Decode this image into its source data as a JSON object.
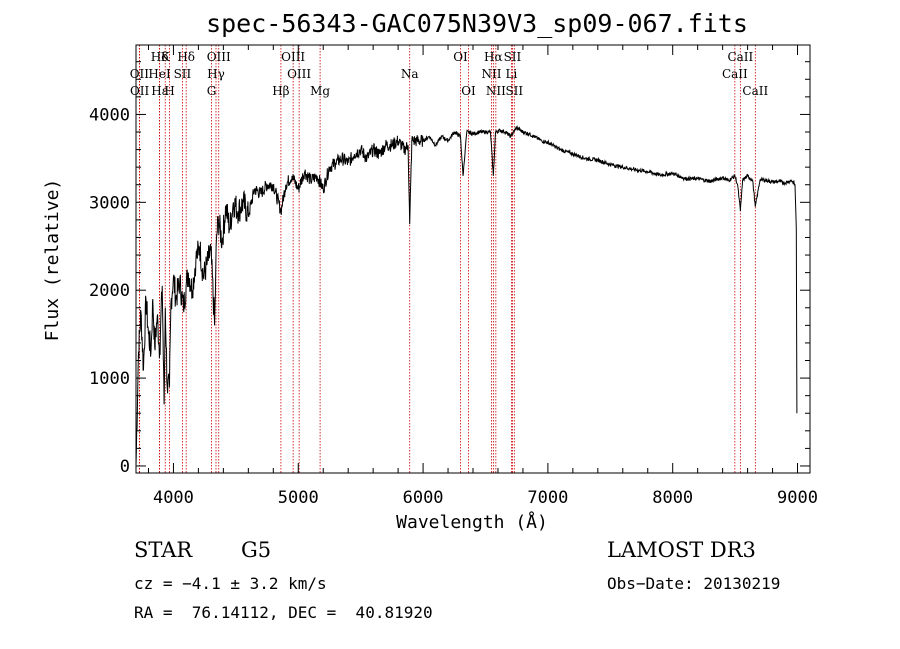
{
  "chart_data": {
    "type": "line",
    "title": "spec-56343-GAC075N39V3_sp09-067.fits",
    "xlabel": "Wavelength (Å)",
    "ylabel": "Flux (relative)",
    "xlim": [
      3700,
      9100
    ],
    "ylim": [
      -80,
      4790
    ],
    "xticks": [
      4000,
      5000,
      6000,
      7000,
      8000,
      9000
    ],
    "yticks": [
      0,
      1000,
      2000,
      3000,
      4000
    ],
    "grid": false,
    "series": [
      {
        "x": [
          3700,
          3720,
          3740,
          3760,
          3780,
          3800,
          3820,
          3835,
          3850,
          3870,
          3890,
          3910,
          3925,
          3935,
          3950,
          3968,
          3980,
          4000,
          4020,
          4050,
          4080,
          4101,
          4120,
          4150,
          4180,
          4210,
          4240,
          4270,
          4300,
          4330,
          4345,
          4360,
          4390,
          4420,
          4450,
          4480,
          4520,
          4560,
          4600,
          4650,
          4700,
          4750,
          4800,
          4861,
          4900,
          4950,
          5000,
          5050,
          5100,
          5150,
          5200,
          5250,
          5300,
          5350,
          5400,
          5450,
          5500,
          5550,
          5600,
          5650,
          5700,
          5750,
          5800,
          5850,
          5880,
          5893,
          5910,
          5950,
          6000,
          6050,
          6100,
          6150,
          6200,
          6250,
          6300,
          6320,
          6350,
          6400,
          6450,
          6500,
          6540,
          6563,
          6580,
          6620,
          6660,
          6700,
          6750,
          6800,
          6850,
          6900,
          6950,
          7000,
          7100,
          7200,
          7300,
          7400,
          7500,
          7600,
          7700,
          7800,
          7900,
          8000,
          8100,
          8200,
          8300,
          8400,
          8450,
          8498,
          8520,
          8542,
          8560,
          8600,
          8640,
          8662,
          8700,
          8750,
          8800,
          8850,
          8900,
          8950,
          8980,
          8990,
          8995
        ],
        "y": [
          0,
          1300,
          1750,
          1100,
          1900,
          1500,
          1300,
          1900,
          1350,
          1700,
          1300,
          2050,
          700,
          1800,
          900,
          900,
          1850,
          2150,
          1900,
          2100,
          1800,
          2050,
          2200,
          2000,
          2350,
          2500,
          2150,
          2300,
          2450,
          1600,
          2600,
          2800,
          2550,
          2950,
          2700,
          3000,
          2900,
          3000,
          2850,
          3150,
          3100,
          3200,
          3200,
          2900,
          3200,
          3300,
          3150,
          3350,
          3250,
          3300,
          3150,
          3400,
          3450,
          3500,
          3450,
          3550,
          3600,
          3500,
          3600,
          3550,
          3650,
          3650,
          3700,
          3600,
          3650,
          2750,
          3700,
          3700,
          3700,
          3750,
          3650,
          3750,
          3700,
          3800,
          3750,
          3300,
          3800,
          3780,
          3800,
          3800,
          3800,
          3300,
          3800,
          3820,
          3800,
          3750,
          3850,
          3800,
          3780,
          3740,
          3700,
          3680,
          3600,
          3550,
          3500,
          3480,
          3430,
          3400,
          3370,
          3350,
          3310,
          3330,
          3270,
          3270,
          3240,
          3280,
          3250,
          3300,
          3200,
          2900,
          3250,
          3300,
          3250,
          2950,
          3260,
          3250,
          3230,
          3240,
          3220,
          3250,
          3200,
          2700,
          600
        ]
      }
    ],
    "spectral_lines": [
      {
        "name": "Hδ",
        "wl": 3889,
        "row": 1
      },
      {
        "name": "OII",
        "wl": 3727,
        "row": 2
      },
      {
        "name": "OII",
        "wl": 3729,
        "row": 3
      },
      {
        "name": "K",
        "wl": 3934,
        "row": 1
      },
      {
        "name": "HeI",
        "wl": 3889,
        "row": 2
      },
      {
        "name": "Hε",
        "wl": 3889,
        "row": 3
      },
      {
        "name": "H",
        "wl": 3969,
        "row": 3
      },
      {
        "name": "SII",
        "wl": 4072,
        "row": 2
      },
      {
        "name": "Hδ",
        "wl": 4102,
        "row": 1
      },
      {
        "name": "OIII",
        "wl": 4363,
        "row": 1
      },
      {
        "name": "Hγ",
        "wl": 4341,
        "row": 2
      },
      {
        "name": "G",
        "wl": 4305,
        "row": 3
      },
      {
        "name": "Hβ",
        "wl": 4861,
        "row": 3
      },
      {
        "name": "OIII",
        "wl": 4959,
        "row": 1
      },
      {
        "name": "OIII",
        "wl": 5007,
        "row": 2
      },
      {
        "name": "Mg",
        "wl": 5175,
        "row": 3
      },
      {
        "name": "Na",
        "wl": 5893,
        "row": 2
      },
      {
        "name": "OI",
        "wl": 6300,
        "row": 1
      },
      {
        "name": "OI",
        "wl": 6364,
        "row": 3
      },
      {
        "name": "Hα",
        "wl": 6563,
        "row": 1
      },
      {
        "name": "NII",
        "wl": 6548,
        "row": 2
      },
      {
        "name": "NII",
        "wl": 6583,
        "row": 3
      },
      {
        "name": "SII",
        "wl": 6716,
        "row": 1
      },
      {
        "name": "Li",
        "wl": 6708,
        "row": 2
      },
      {
        "name": "SII",
        "wl": 6731,
        "row": 3
      },
      {
        "name": "CaII",
        "wl": 8542,
        "row": 1
      },
      {
        "name": "CaII",
        "wl": 8498,
        "row": 2
      },
      {
        "name": "CaII",
        "wl": 8662,
        "row": 3
      }
    ]
  },
  "info": {
    "class": "STAR",
    "subclass": "G5",
    "survey": "LAMOST DR3",
    "cz": "cz = −4.1 ± 3.2 km/s",
    "obs_date": "Obs−Date: 20130219",
    "coords": "RA =  76.14112, DEC =  40.81920"
  }
}
